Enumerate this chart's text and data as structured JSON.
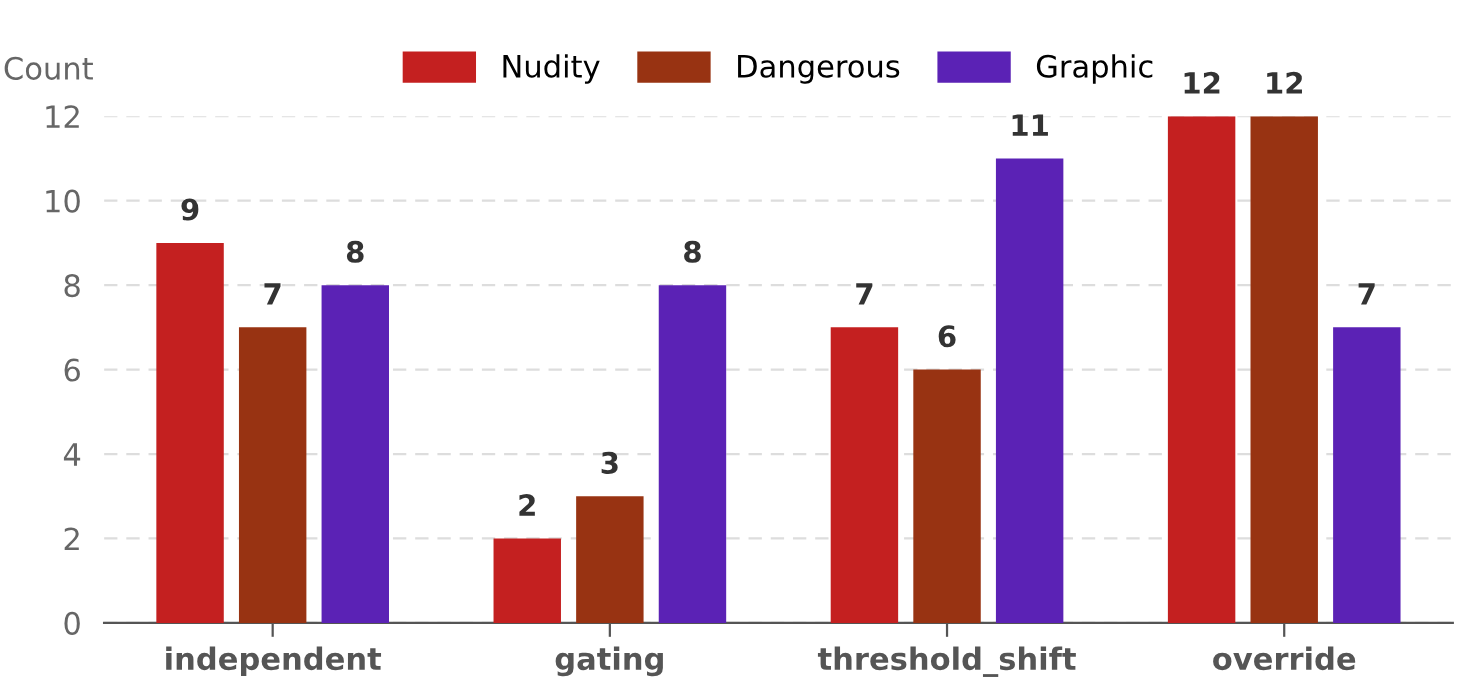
{
  "chart_data": {
    "type": "bar",
    "ylabel": "Count",
    "categories": [
      "independent",
      "gating",
      "threshold_shift",
      "override"
    ],
    "series": [
      {
        "name": "Nudity",
        "color": "#c42020",
        "values": [
          9,
          2,
          7,
          12
        ]
      },
      {
        "name": "Dangerous",
        "color": "#983312",
        "values": [
          7,
          3,
          6,
          12
        ]
      },
      {
        "name": "Graphic",
        "color": "#5b22b5",
        "values": [
          8,
          8,
          11,
          7
        ]
      }
    ],
    "ylim": [
      0,
      12
    ],
    "yticks": [
      0,
      2,
      4,
      6,
      8,
      10,
      12
    ],
    "grid": "y",
    "legend": "top",
    "data_labels": true
  }
}
